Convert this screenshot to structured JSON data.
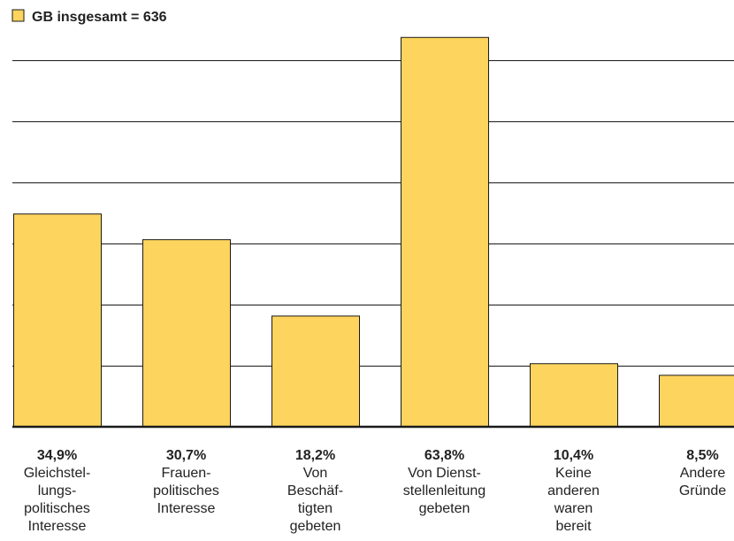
{
  "chart_data": {
    "type": "bar",
    "legend": {
      "label": "GB insgesamt = 636",
      "placement": "top-left"
    },
    "categories": [
      "Gleichstel-\nlungs-\npolitisches\nInteresse",
      "Frauen-\npolitisches\nInteresse",
      "Von\nBeschäf-\ntigten\ngebeten",
      "Von Dienst-\nstellenleitung\ngebeten",
      "Keine\nanderen\nwaren\nbereit",
      "Andere\nGründe"
    ],
    "series": [
      {
        "name": "GB insgesamt = 636",
        "values": [
          34.9,
          30.7,
          18.2,
          63.8,
          10.4,
          8.5
        ],
        "labels": [
          "34,9%",
          "30,7%",
          "18,2%",
          "63,8%",
          "10,4%",
          "8,5%"
        ]
      }
    ],
    "ylim": [
      0,
      70
    ],
    "grid": true,
    "colors": {
      "bar": "#FDD45D",
      "bar_outline": "#1a1a1a",
      "grid": "#1a1a1a"
    }
  }
}
